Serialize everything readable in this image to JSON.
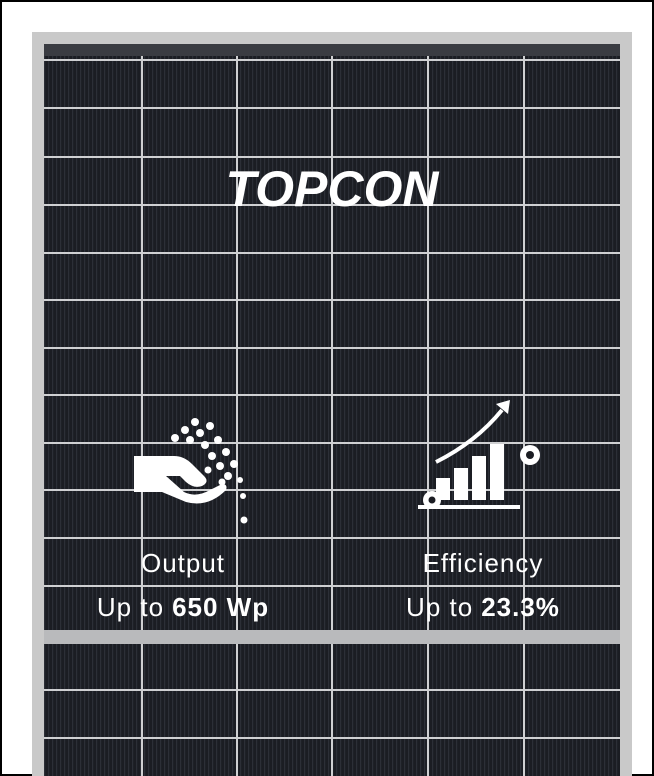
{
  "title": "TOPCON",
  "features": [
    {
      "label": "Output",
      "prefix": "Up to",
      "value": "650 Wp"
    },
    {
      "label": "Efficiency",
      "prefix": "Up to",
      "value": "23.3%"
    }
  ]
}
